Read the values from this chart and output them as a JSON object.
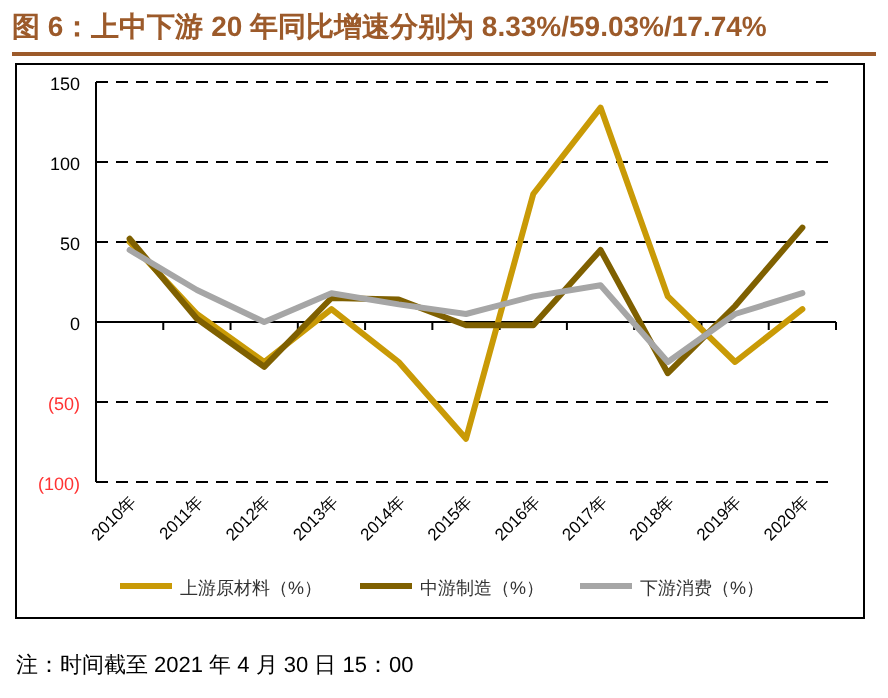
{
  "chart_data": {
    "type": "line",
    "title": "图 6：上中下游 20 年同比增速分别为 8.33%/59.03%/17.74%",
    "categories": [
      "2010年",
      "2011年",
      "2012年",
      "2013年",
      "2014年",
      "2015年",
      "2016年",
      "2017年",
      "2018年",
      "2019年",
      "2020年"
    ],
    "series": [
      {
        "name": "上游原材料（%）",
        "color": "#c99a06",
        "values": [
          50,
          5,
          -25,
          8,
          -25,
          -73,
          80,
          134,
          16,
          -25,
          8
        ]
      },
      {
        "name": "中游制造（%）",
        "color": "#7f6000",
        "values": [
          52,
          2,
          -28,
          15,
          14,
          -2,
          -2,
          45,
          -32,
          10,
          59
        ]
      },
      {
        "name": "下游消费（%）",
        "color": "#a6a6a6",
        "values": [
          45,
          20,
          0,
          18,
          11,
          5,
          16,
          23,
          -25,
          5,
          18
        ]
      }
    ],
    "ylim": [
      -100,
      150
    ],
    "yticks": [
      {
        "value": -100,
        "label": "(100)"
      },
      {
        "value": -50,
        "label": "(50)"
      },
      0,
      50,
      100,
      150
    ],
    "grid": "y",
    "line_style": "solid",
    "marker": "none",
    "legend": "bottom",
    "annotations": [
      "注：时间截至 2021 年 4 月 30 日 15：00"
    ]
  }
}
